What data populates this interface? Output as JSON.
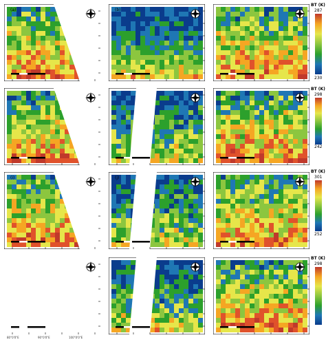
{
  "figure": {
    "columns": 4,
    "rows": 4,
    "panel_labels": [
      "(a)",
      "(b)",
      "",
      "",
      "",
      "",
      "",
      "",
      "(i)",
      "(j)",
      "",
      "",
      "",
      "",
      "",
      ""
    ],
    "colorbars": [
      {
        "title": "BT (K)",
        "max": "287",
        "min": "230"
      },
      {
        "title": "BT (K)",
        "max": "298",
        "min": "242"
      },
      {
        "title": "BT (K)",
        "max": "301",
        "min": "252"
      },
      {
        "title": "BT (K)",
        "max": "298",
        "min": ""
      }
    ],
    "colormap": [
      "#0a3c8c",
      "#1f77b4",
      "#2ca02c",
      "#8cc63f",
      "#e6e64a",
      "#f5a623",
      "#e0522b",
      "#c0392b"
    ],
    "north_arrow_icon": "compass-icon",
    "bottom_axis_labels": [
      "80°0'0\"E",
      "90°0'0\"E",
      "100°0'0\"E"
    ]
  }
}
